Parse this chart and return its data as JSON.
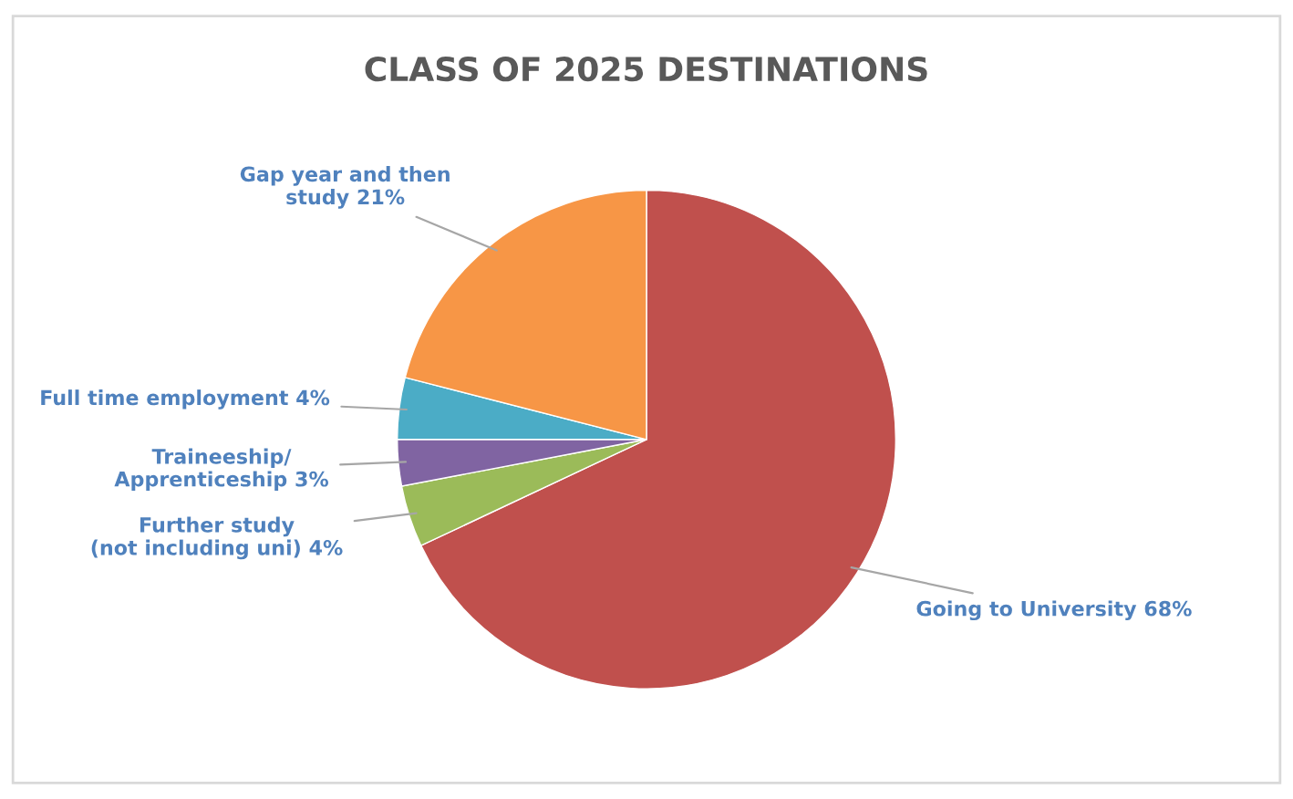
{
  "chart_data": {
    "type": "pie",
    "title": "CLASS OF 2025 DESTINATIONS",
    "categories": [
      "Going to University",
      "Further study\n(not including uni)",
      "Traineeship/\nApprenticeship",
      "Full time employment",
      "Gap year and then\nstudy"
    ],
    "values": [
      68,
      4,
      3,
      4,
      21
    ],
    "value_labels": [
      "68%",
      "4%",
      "3%",
      "4%",
      "21%"
    ],
    "colors": [
      "#c0504d",
      "#9bbb59",
      "#8064a2",
      "#4bacc6",
      "#f79646"
    ],
    "legend": false
  }
}
